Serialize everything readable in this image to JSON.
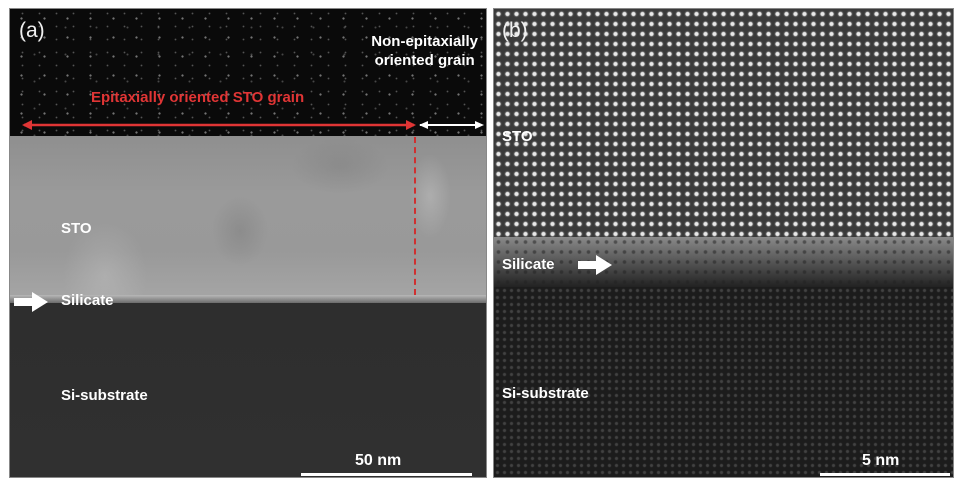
{
  "panel_a": {
    "label": "(a)",
    "non_epitaxial_label_line1": "Non-epitaxially",
    "non_epitaxial_label_line2": "oriented grain",
    "epitaxial_label": "Epitaxially oriented STO grain",
    "sto_label": "STO",
    "silicate_label": "Silicate",
    "substrate_label": "Si-substrate",
    "scale_label": "50 nm",
    "arrow_color": "#e03535"
  },
  "panel_b": {
    "label": "(b)",
    "sto_label": "STO",
    "silicate_label": "Silicate",
    "substrate_label": "Si-substrate",
    "scale_label": "5 nm"
  }
}
